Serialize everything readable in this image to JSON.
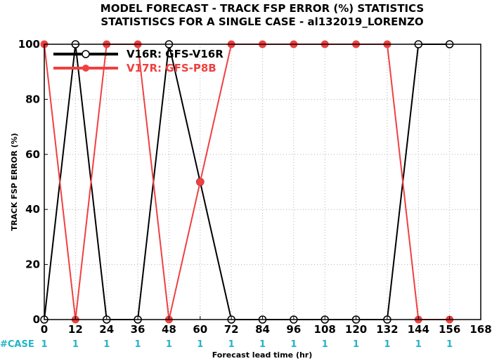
{
  "chart_data": {
    "type": "line",
    "title_line1": "MODEL FORECAST - TRACK FSP ERROR (%) STATISTICS",
    "title_line2": "STATISTISCS FOR A SINGLE CASE - al132019_LORENZO",
    "xlabel": "Forecast lead time (hr)",
    "ylabel": "TRACK FSP ERROR (%)",
    "xlim": [
      0,
      168
    ],
    "ylim": [
      0,
      100
    ],
    "xticks": [
      "0",
      "12",
      "24",
      "36",
      "48",
      "60",
      "72",
      "84",
      "96",
      "108",
      "120",
      "132",
      "144",
      "156",
      "168"
    ],
    "yticks": [
      "0",
      "20",
      "40",
      "60",
      "80",
      "100"
    ],
    "grid": true,
    "legend_position": "top-left",
    "series": [
      {
        "name": "V16R: GFS-V16R",
        "color": "#000000",
        "marker": "open-circle",
        "x": [
          0,
          12,
          24,
          36,
          48,
          60,
          72,
          84,
          96,
          108,
          120,
          132,
          144,
          156
        ],
        "y": [
          0,
          100,
          0,
          0,
          100,
          50,
          0,
          0,
          0,
          0,
          0,
          0,
          100,
          100
        ]
      },
      {
        "name": "V17R: GFS-P8B",
        "color": "#f04040",
        "marker": "filled-circle",
        "x": [
          0,
          12,
          24,
          36,
          48,
          60,
          72,
          84,
          96,
          108,
          120,
          132,
          144,
          156
        ],
        "y": [
          100,
          0,
          100,
          100,
          0,
          50,
          100,
          100,
          100,
          100,
          100,
          100,
          0,
          0
        ]
      }
    ],
    "case_label": "#CASE",
    "case_counts": [
      "1",
      "1",
      "1",
      "1",
      "1",
      "1",
      "1",
      "1",
      "1",
      "1",
      "1",
      "1",
      "1",
      "1"
    ]
  }
}
